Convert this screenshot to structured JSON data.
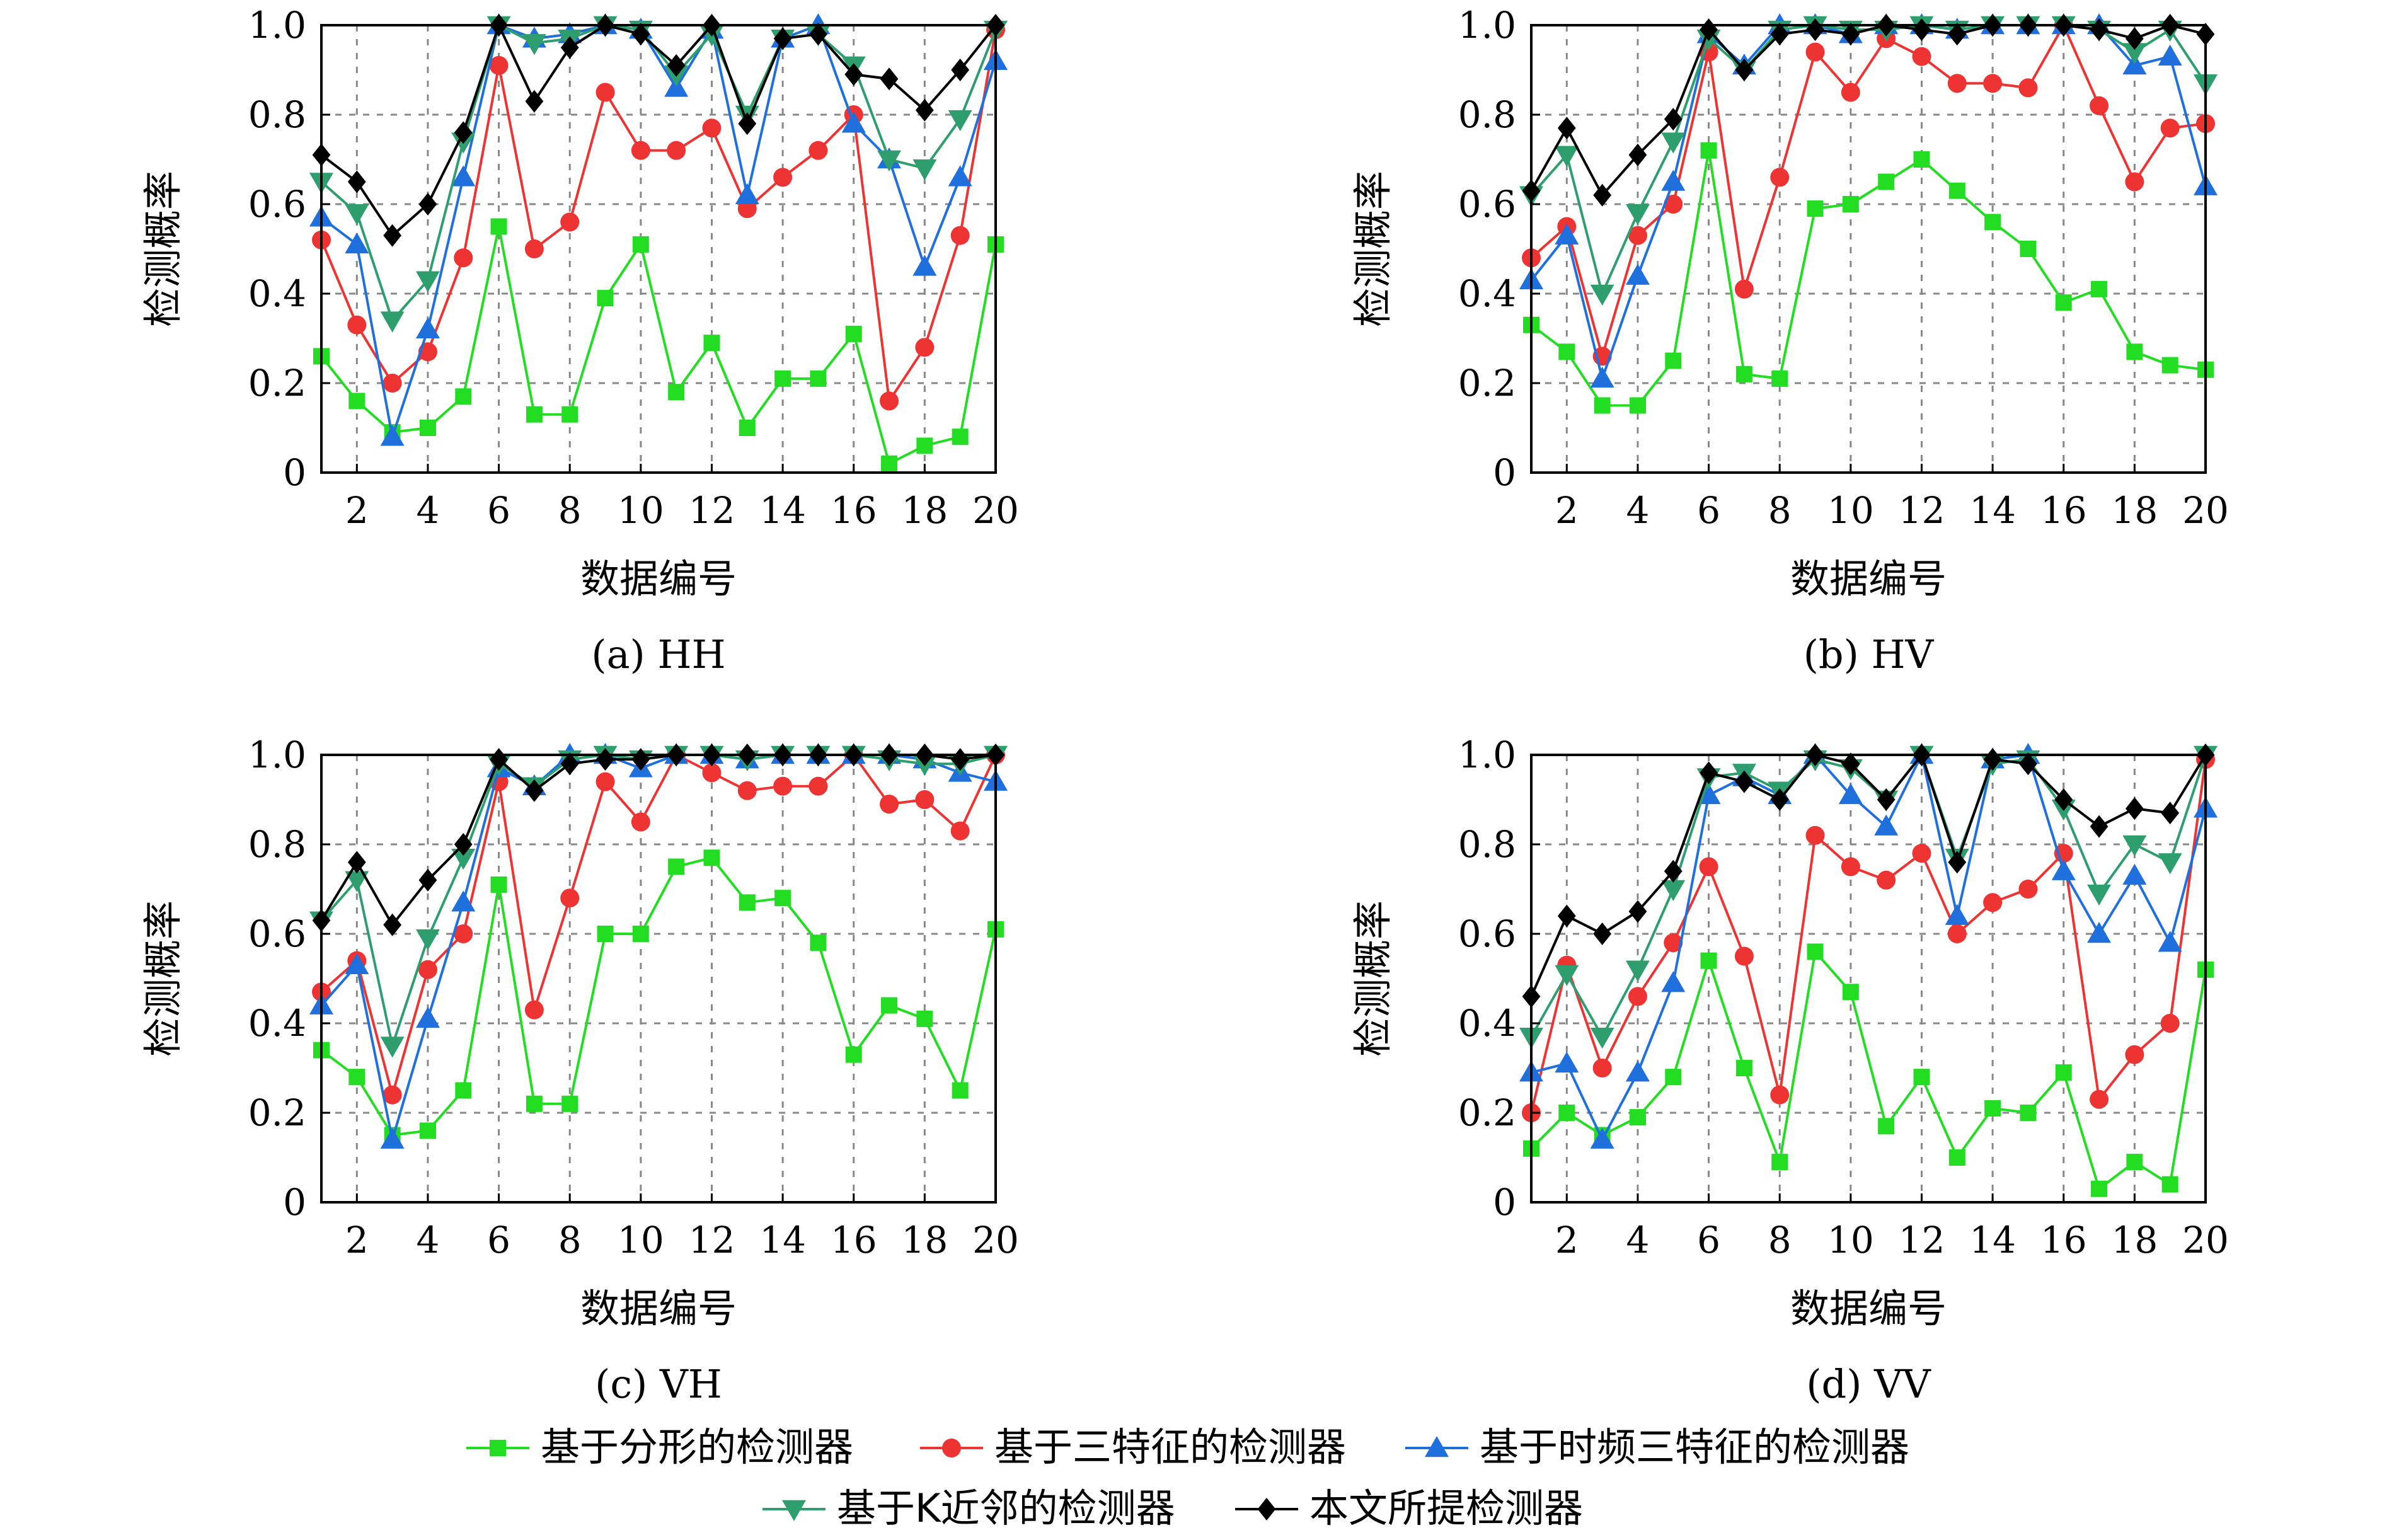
{
  "chart_data": {
    "type": "line",
    "legend": {
      "placement": "bottom",
      "entries": [
        {
          "name": "基于分形的检测器",
          "color": "#22dd22",
          "marker": "square"
        },
        {
          "name": "基于三特征的检测器",
          "color": "#ee3333",
          "marker": "circle"
        },
        {
          "name": "基于时频三特征的检测器",
          "color": "#1f6fdd",
          "marker": "triangle-up"
        },
        {
          "name": "基于K近邻的检测器",
          "color": "#2e9e6e",
          "marker": "triangle-down"
        },
        {
          "name": "本文所提检测器",
          "color": "#000000",
          "marker": "diamond"
        }
      ]
    },
    "panels": [
      {
        "caption": "(a) HH",
        "xlabel": "数据编号",
        "ylabel": "检测概率",
        "xlim": [
          1,
          20
        ],
        "ylim": [
          0,
          1
        ],
        "xticks": [
          2,
          4,
          6,
          8,
          10,
          12,
          14,
          16,
          18,
          20
        ],
        "yticks": [
          0,
          0.2,
          0.4,
          0.6,
          0.8,
          1.0
        ],
        "ytick_labels": [
          "0",
          "0.2",
          "0.4",
          "0.6",
          "0.8",
          "1.0"
        ],
        "x": [
          1,
          2,
          3,
          4,
          5,
          6,
          7,
          8,
          9,
          10,
          11,
          12,
          13,
          14,
          15,
          16,
          17,
          18,
          19,
          20
        ],
        "series": [
          {
            "name": "基于分形的检测器",
            "values": [
              0.26,
              0.16,
              0.09,
              0.1,
              0.17,
              0.55,
              0.13,
              0.13,
              0.39,
              0.51,
              0.18,
              0.29,
              0.1,
              0.21,
              0.21,
              0.31,
              0.02,
              0.06,
              0.08,
              0.51
            ]
          },
          {
            "name": "基于三特征的检测器",
            "values": [
              0.52,
              0.33,
              0.2,
              0.27,
              0.48,
              0.91,
              0.5,
              0.56,
              0.85,
              0.72,
              0.72,
              0.77,
              0.59,
              0.66,
              0.72,
              0.8,
              0.16,
              0.28,
              0.53,
              0.99
            ]
          },
          {
            "name": "基于时频三特征的检测器",
            "values": [
              0.57,
              0.51,
              0.08,
              0.32,
              0.66,
              1.0,
              0.97,
              0.98,
              1.0,
              0.99,
              0.86,
              0.99,
              0.62,
              0.97,
              1.0,
              0.78,
              0.7,
              0.46,
              0.66,
              0.92
            ]
          },
          {
            "name": "基于K近邻的检测器",
            "values": [
              0.65,
              0.58,
              0.34,
              0.43,
              0.74,
              1.0,
              0.96,
              0.97,
              1.0,
              0.99,
              0.89,
              0.98,
              0.8,
              0.97,
              0.98,
              0.91,
              0.7,
              0.68,
              0.79,
              0.99
            ]
          },
          {
            "name": "本文所提检测器",
            "values": [
              0.71,
              0.65,
              0.53,
              0.6,
              0.76,
              1.0,
              0.83,
              0.95,
              1.0,
              0.98,
              0.91,
              1.0,
              0.78,
              0.97,
              0.98,
              0.89,
              0.88,
              0.81,
              0.9,
              1.0
            ]
          }
        ]
      },
      {
        "caption": "(b) HV",
        "xlabel": "数据编号",
        "ylabel": "检测概率",
        "xlim": [
          1,
          20
        ],
        "ylim": [
          0,
          1
        ],
        "xticks": [
          2,
          4,
          6,
          8,
          10,
          12,
          14,
          16,
          18,
          20
        ],
        "yticks": [
          0,
          0.2,
          0.4,
          0.6,
          0.8,
          1.0
        ],
        "ytick_labels": [
          "0",
          "0.2",
          "0.4",
          "0.6",
          "0.8",
          "1.0"
        ],
        "x": [
          1,
          2,
          3,
          4,
          5,
          6,
          7,
          8,
          9,
          10,
          11,
          12,
          13,
          14,
          15,
          16,
          17,
          18,
          19,
          20
        ],
        "series": [
          {
            "name": "基于分形的检测器",
            "values": [
              0.33,
              0.27,
              0.15,
              0.15,
              0.25,
              0.72,
              0.22,
              0.21,
              0.59,
              0.6,
              0.65,
              0.7,
              0.63,
              0.56,
              0.5,
              0.38,
              0.41,
              0.27,
              0.24,
              0.23
            ]
          },
          {
            "name": "基于三特征的检测器",
            "values": [
              0.48,
              0.55,
              0.26,
              0.53,
              0.6,
              0.94,
              0.41,
              0.66,
              0.94,
              0.85,
              0.97,
              0.93,
              0.87,
              0.87,
              0.86,
              1.0,
              0.82,
              0.65,
              0.77,
              0.78
            ]
          },
          {
            "name": "基于时频三特征的检测器",
            "values": [
              0.43,
              0.53,
              0.21,
              0.44,
              0.65,
              0.98,
              0.91,
              1.0,
              1.0,
              0.98,
              1.0,
              1.0,
              0.99,
              1.0,
              1.0,
              1.0,
              1.0,
              0.91,
              0.93,
              0.64
            ]
          },
          {
            "name": "基于K近邻的检测器",
            "values": [
              0.62,
              0.71,
              0.4,
              0.58,
              0.74,
              0.97,
              0.9,
              0.99,
              1.0,
              0.99,
              0.99,
              1.0,
              0.99,
              1.0,
              1.0,
              1.0,
              0.99,
              0.94,
              0.99,
              0.87
            ]
          },
          {
            "name": "本文所提检测器",
            "values": [
              0.63,
              0.77,
              0.62,
              0.71,
              0.79,
              0.99,
              0.9,
              0.98,
              0.99,
              0.98,
              1.0,
              0.99,
              0.98,
              1.0,
              1.0,
              1.0,
              0.99,
              0.97,
              1.0,
              0.98
            ]
          }
        ]
      },
      {
        "caption": "(c) VH",
        "xlabel": "数据编号",
        "ylabel": "检测概率",
        "xlim": [
          1,
          20
        ],
        "ylim": [
          0,
          1
        ],
        "xticks": [
          2,
          4,
          6,
          8,
          10,
          12,
          14,
          16,
          18,
          20
        ],
        "yticks": [
          0,
          0.2,
          0.4,
          0.6,
          0.8,
          1.0
        ],
        "ytick_labels": [
          "0",
          "0.2",
          "0.4",
          "0.6",
          "0.8",
          "1.0"
        ],
        "x": [
          1,
          2,
          3,
          4,
          5,
          6,
          7,
          8,
          9,
          10,
          11,
          12,
          13,
          14,
          15,
          16,
          17,
          18,
          19,
          20
        ],
        "series": [
          {
            "name": "基于分形的检测器",
            "values": [
              0.34,
              0.28,
              0.15,
              0.16,
              0.25,
              0.71,
              0.22,
              0.22,
              0.6,
              0.6,
              0.75,
              0.77,
              0.67,
              0.68,
              0.58,
              0.33,
              0.44,
              0.41,
              0.25,
              0.61
            ]
          },
          {
            "name": "基于三特征的检测器",
            "values": [
              0.47,
              0.54,
              0.24,
              0.52,
              0.6,
              0.94,
              0.43,
              0.68,
              0.94,
              0.85,
              1.0,
              0.96,
              0.92,
              0.93,
              0.93,
              1.0,
              0.89,
              0.9,
              0.83,
              1.0
            ]
          },
          {
            "name": "基于时频三特征的检测器",
            "values": [
              0.44,
              0.53,
              0.14,
              0.41,
              0.67,
              0.97,
              0.93,
              1.0,
              1.0,
              0.97,
              1.0,
              1.0,
              0.99,
              1.0,
              1.0,
              1.0,
              1.0,
              0.99,
              0.96,
              0.94
            ]
          },
          {
            "name": "基于K近邻的检测器",
            "values": [
              0.63,
              0.72,
              0.35,
              0.59,
              0.77,
              0.98,
              0.93,
              0.99,
              1.0,
              0.99,
              1.0,
              1.0,
              0.99,
              1.0,
              1.0,
              1.0,
              0.99,
              0.98,
              0.98,
              1.0
            ]
          },
          {
            "name": "本文所提检测器",
            "values": [
              0.63,
              0.76,
              0.62,
              0.72,
              0.8,
              0.99,
              0.92,
              0.98,
              0.99,
              0.99,
              1.0,
              1.0,
              1.0,
              1.0,
              1.0,
              1.0,
              1.0,
              1.0,
              0.99,
              1.0
            ]
          }
        ]
      },
      {
        "caption": "(d) VV",
        "xlabel": "数据编号",
        "ylabel": "检测概率",
        "xlim": [
          1,
          20
        ],
        "ylim": [
          0,
          1
        ],
        "xticks": [
          2,
          4,
          6,
          8,
          10,
          12,
          14,
          16,
          18,
          20
        ],
        "yticks": [
          0,
          0.2,
          0.4,
          0.6,
          0.8,
          1.0
        ],
        "ytick_labels": [
          "0",
          "0.2",
          "0.4",
          "0.6",
          "0.8",
          "1.0"
        ],
        "x": [
          1,
          2,
          3,
          4,
          5,
          6,
          7,
          8,
          9,
          10,
          11,
          12,
          13,
          14,
          15,
          16,
          17,
          18,
          19,
          20
        ],
        "series": [
          {
            "name": "基于分形的检测器",
            "values": [
              0.12,
              0.2,
              0.15,
              0.19,
              0.28,
              0.54,
              0.3,
              0.09,
              0.56,
              0.47,
              0.17,
              0.28,
              0.1,
              0.21,
              0.2,
              0.29,
              0.03,
              0.09,
              0.04,
              0.52
            ]
          },
          {
            "name": "基于三特征的检测器",
            "values": [
              0.2,
              0.53,
              0.3,
              0.46,
              0.58,
              0.75,
              0.55,
              0.24,
              0.82,
              0.75,
              0.72,
              0.78,
              0.6,
              0.67,
              0.7,
              0.78,
              0.23,
              0.33,
              0.4,
              0.99
            ]
          },
          {
            "name": "基于时频三特征的检测器",
            "values": [
              0.29,
              0.31,
              0.14,
              0.29,
              0.49,
              0.91,
              0.95,
              0.91,
              1.0,
              0.91,
              0.84,
              1.0,
              0.64,
              0.99,
              1.0,
              0.74,
              0.6,
              0.73,
              0.58,
              0.88
            ]
          },
          {
            "name": "基于K近邻的检测器",
            "values": [
              0.37,
              0.51,
              0.37,
              0.52,
              0.7,
              0.95,
              0.96,
              0.92,
              0.99,
              0.97,
              0.9,
              1.0,
              0.77,
              0.98,
              0.99,
              0.88,
              0.69,
              0.8,
              0.76,
              1.0
            ]
          },
          {
            "name": "本文所提检测器",
            "values": [
              0.46,
              0.64,
              0.6,
              0.65,
              0.74,
              0.96,
              0.94,
              0.9,
              1.0,
              0.98,
              0.9,
              1.0,
              0.76,
              0.99,
              0.98,
              0.9,
              0.84,
              0.88,
              0.87,
              1.0
            ]
          }
        ]
      }
    ]
  }
}
